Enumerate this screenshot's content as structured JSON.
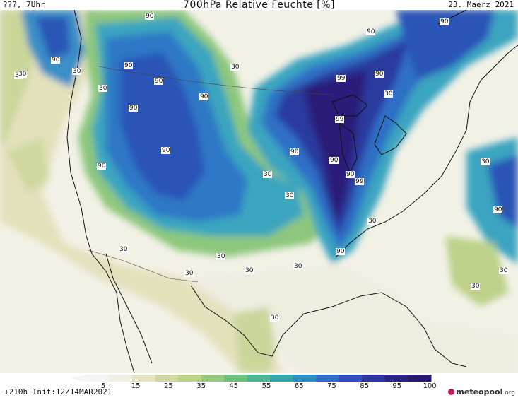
{
  "header": {
    "left": "???, 7Uhr",
    "title": "700hPa Relative Feuchte [%]",
    "date": "23. Maerz 2021"
  },
  "footer": {
    "init": "+210h  Init:12Z14MAR2021",
    "logo_text": "meteopool",
    "logo_suffix": ".org"
  },
  "colorbar": {
    "ticks": [
      "5",
      "15",
      "25",
      "35",
      "45",
      "55",
      "65",
      "75",
      "85",
      "95",
      "100"
    ],
    "colors": [
      "#f4f4f2",
      "#f0efe2",
      "#e6e4c3",
      "#d3d6a0",
      "#bcd28a",
      "#97ca7a",
      "#6fc07a",
      "#4bb592",
      "#35a6b0",
      "#2d8cc4",
      "#2f6cc2",
      "#2f4fb8",
      "#2e35a0",
      "#2a2286",
      "#2a1870"
    ]
  },
  "map": {
    "isolines": [
      "90",
      "30",
      "90",
      "90",
      "30",
      "90",
      "90",
      "90",
      "90",
      "30",
      "90",
      "90",
      "30",
      "99",
      "99",
      "30",
      "90",
      "90",
      "30",
      "30",
      "30",
      "90",
      "30",
      "90",
      "90",
      "90",
      "99",
      "30",
      "30",
      "30",
      "30",
      "30",
      "30",
      "30",
      "30",
      "90",
      "30"
    ],
    "colors": {
      "dry": "#f3f2ea",
      "light": "#e5e3bf",
      "mid": "#c7d394",
      "green": "#8fc77d",
      "teal": "#47b496",
      "cyan": "#38a3c0",
      "blue": "#2d7dc6",
      "deepblue": "#2c54b8",
      "navy": "#2b2e96",
      "purple": "#2b1c78"
    }
  }
}
